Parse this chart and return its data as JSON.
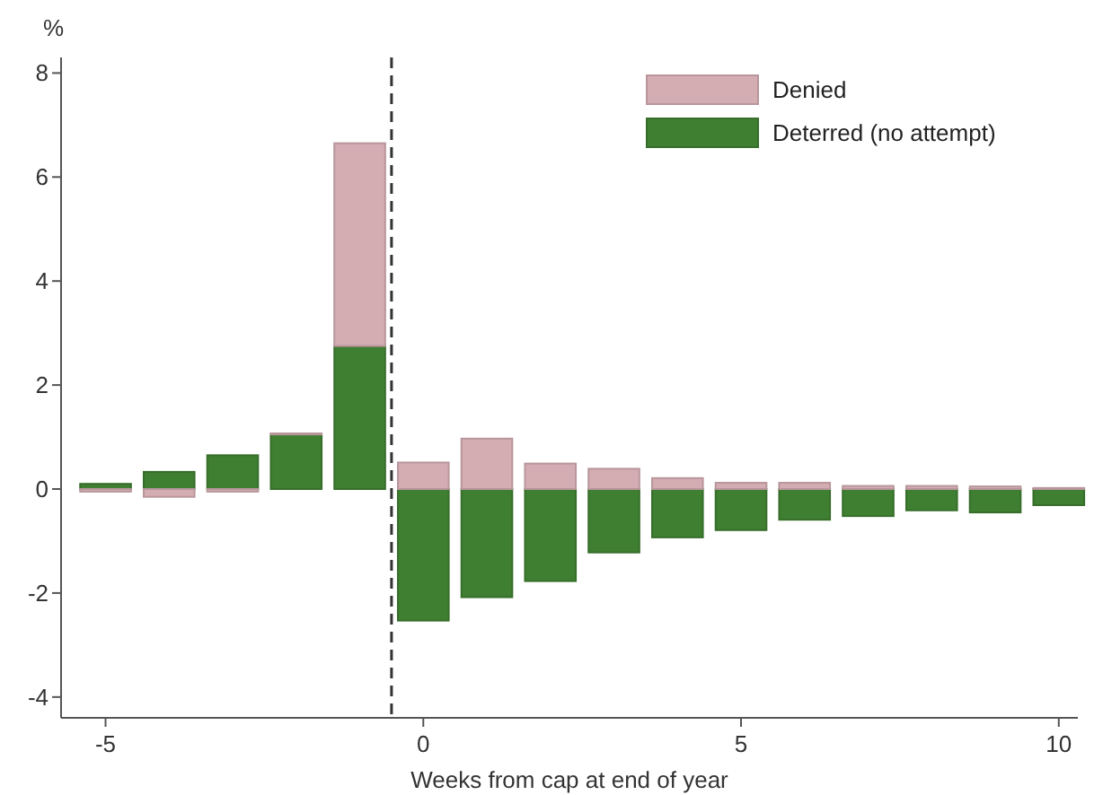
{
  "chart_data": {
    "type": "bar",
    "stacked": true,
    "ylabel": "%",
    "xlabel": "Weeks from cap at end of year",
    "x": [
      -5,
      -4,
      -3,
      -2,
      -1,
      0,
      1,
      2,
      3,
      4,
      5,
      6,
      7,
      8,
      9,
      10
    ],
    "series": [
      {
        "name": "Deterred (no attempt)",
        "color": "#3f7f32",
        "values": [
          0.1,
          0.33,
          0.65,
          1.05,
          2.75,
          -2.53,
          -2.08,
          -1.77,
          -1.22,
          -0.93,
          -0.79,
          -0.59,
          -0.52,
          -0.41,
          -0.45,
          -0.31
        ]
      },
      {
        "name": "Denied",
        "color": "#d4adb3",
        "values": [
          -0.05,
          -0.15,
          -0.05,
          0.02,
          3.9,
          0.51,
          0.97,
          0.49,
          0.39,
          0.21,
          0.12,
          0.12,
          0.06,
          0.06,
          0.05,
          0.02
        ]
      }
    ],
    "xlim": [
      -5.7,
      10.3
    ],
    "xticks": [
      -5,
      0,
      5,
      10
    ],
    "ylim": [
      -4.4,
      8.3
    ],
    "yticks": [
      -4,
      -2,
      0,
      2,
      4,
      6,
      8
    ],
    "ref_lines": [
      {
        "axis": "x",
        "value": -0.5,
        "line_style": "dashed",
        "color": "#333333"
      }
    ],
    "legend": "top right",
    "grid": false
  }
}
